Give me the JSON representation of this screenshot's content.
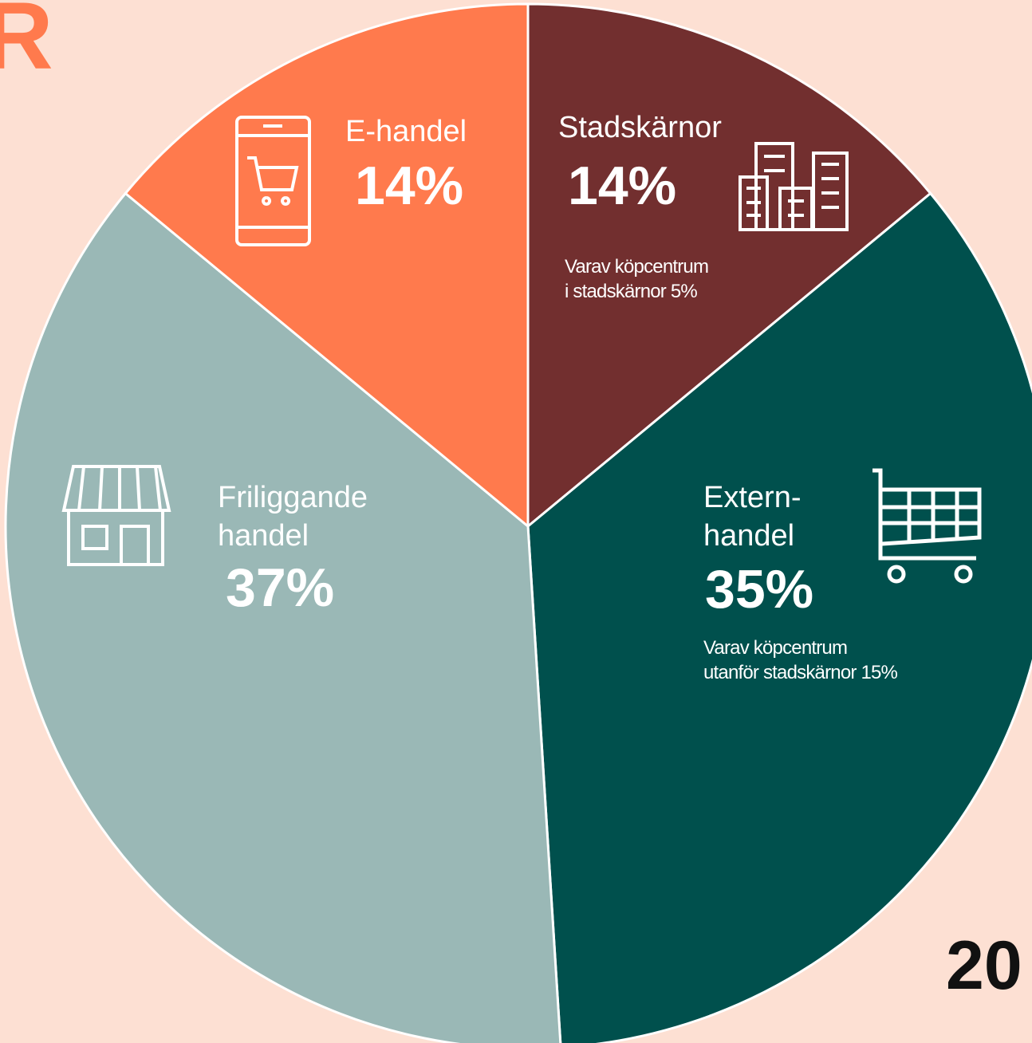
{
  "chart_data": {
    "type": "pie",
    "categories": [
      "Stadskärnor",
      "Extern-\nhandel",
      "Friliggande\nhandel",
      "E-handel"
    ],
    "values": [
      14,
      35,
      37,
      14
    ],
    "value_labels": [
      "14%",
      "35%",
      "37%",
      "14%"
    ],
    "colors": [
      "#722f2f",
      "#00504d",
      "#9ab8b6",
      "#ff7a4d"
    ],
    "annotations": [
      "Varav köpcentrum\ni stadskärnor 5%",
      "Varav köpcentrum\nutanför stadskärnor 15%"
    ],
    "logo": "R",
    "corner_text": "20"
  }
}
